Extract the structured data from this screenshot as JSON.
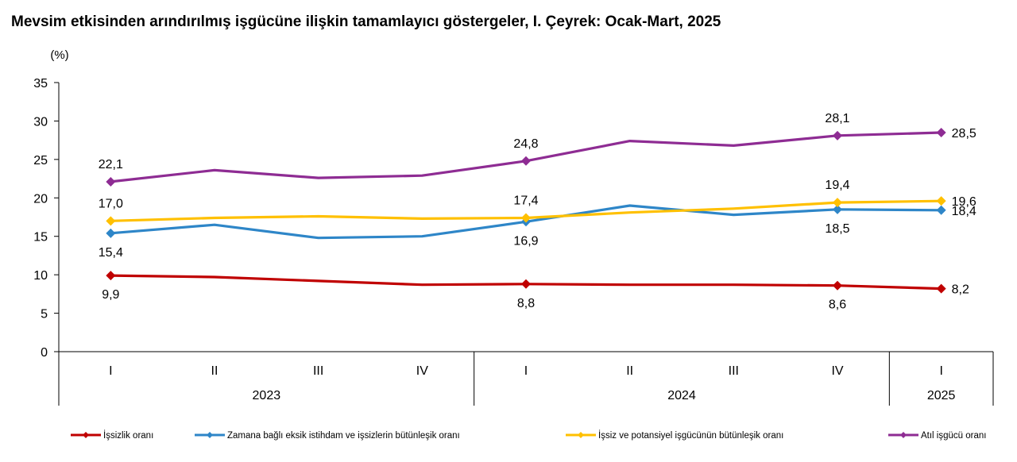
{
  "chart_data": {
    "type": "line",
    "title": "Mevsim etkisinden arındırılmış işgücüne ilişkin tamamlayıcı göstergeler, I. Çeyrek: Ocak-Mart, 2025",
    "ylabel": "(%)",
    "ylim": [
      0,
      35
    ],
    "yticks": [
      0,
      5,
      10,
      15,
      20,
      25,
      30,
      35
    ],
    "grid": false,
    "legend_position": "bottom",
    "quarters": [
      "I",
      "II",
      "III",
      "IV",
      "I",
      "II",
      "III",
      "IV",
      "I"
    ],
    "years": [
      {
        "label": "2023",
        "span": [
          0,
          3
        ]
      },
      {
        "label": "2024",
        "span": [
          4,
          7
        ]
      },
      {
        "label": "2025",
        "span": [
          8,
          8
        ]
      }
    ],
    "series": [
      {
        "name": "İşsizlik oranı",
        "color": "#C00000",
        "values": [
          9.9,
          9.7,
          9.2,
          8.7,
          8.8,
          8.7,
          8.7,
          8.6,
          8.2
        ],
        "labeled": [
          0,
          4,
          7,
          8
        ],
        "label_pos": [
          "below",
          "below",
          "below",
          "right"
        ]
      },
      {
        "name": "Zamana bağlı eksik istihdam ve işsizlerin bütünleşik oranı",
        "color": "#2E86C8",
        "values": [
          15.4,
          16.5,
          14.8,
          15.0,
          16.9,
          19.0,
          17.8,
          18.5,
          18.4
        ],
        "labeled": [
          0,
          4,
          7,
          8
        ],
        "label_pos": [
          "below",
          "below",
          "below",
          "right"
        ]
      },
      {
        "name": "İşsiz ve potansiyel işgücünün bütünleşik oranı",
        "color": "#FFC000",
        "values": [
          17.0,
          17.4,
          17.6,
          17.3,
          17.4,
          18.1,
          18.6,
          19.4,
          19.6
        ],
        "labeled": [
          0,
          4,
          7,
          8
        ],
        "label_pos": [
          "above",
          "above",
          "above",
          "right"
        ]
      },
      {
        "name": "Atıl işgücü oranı",
        "color": "#8E2C93",
        "values": [
          22.1,
          23.6,
          22.6,
          22.9,
          24.8,
          27.4,
          26.8,
          28.1,
          28.5
        ],
        "labeled": [
          0,
          4,
          7,
          8
        ],
        "label_pos": [
          "above",
          "above",
          "above",
          "right"
        ]
      }
    ]
  }
}
